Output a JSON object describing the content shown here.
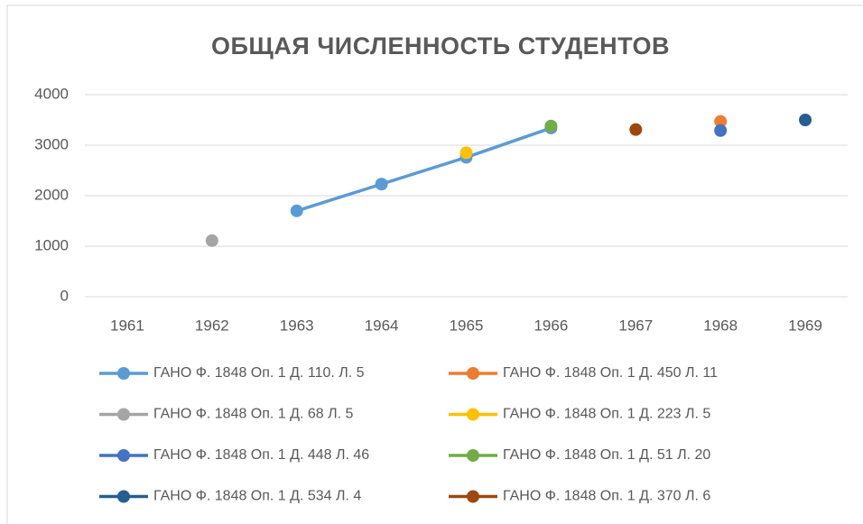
{
  "chart_data": {
    "type": "line",
    "title": "ОБЩАЯ ЧИСЛЕННОСТЬ СТУДЕНТОВ",
    "categories": [
      "1961",
      "1962",
      "1963",
      "1964",
      "1965",
      "1966",
      "1967",
      "1968",
      "1969"
    ],
    "ylim": [
      0,
      4000
    ],
    "yticks": [
      0,
      1000,
      2000,
      3000,
      4000
    ],
    "grid": true,
    "legend": "bottom",
    "series": [
      {
        "name": "ГАНО Ф. 1848 Оп. 1 Д. 110. Л. 5",
        "color": "#5b9bd5",
        "values": [
          null,
          null,
          1700,
          2230,
          2760,
          3340,
          null,
          null,
          null
        ]
      },
      {
        "name": "ГАНО Ф. 1848 Оп. 1 Д. 450 Л. 11",
        "color": "#ed7d31",
        "values": [
          null,
          null,
          null,
          null,
          null,
          null,
          null,
          3470,
          null
        ]
      },
      {
        "name": "ГАНО Ф. 1848 Оп. 1 Д. 68 Л. 5",
        "color": "#a5a5a5",
        "values": [
          null,
          1110,
          null,
          null,
          null,
          null,
          null,
          null,
          null
        ]
      },
      {
        "name": "ГАНО Ф. 1848 Оп. 1 Д. 223 Л. 5",
        "color": "#ffc000",
        "values": [
          null,
          null,
          null,
          null,
          2850,
          null,
          null,
          null,
          null
        ]
      },
      {
        "name": "ГАНО Ф. 1848 Оп. 1 Д. 448 Л. 46",
        "color": "#4472c4",
        "values": [
          null,
          null,
          null,
          null,
          null,
          null,
          null,
          3290,
          null
        ]
      },
      {
        "name": "ГАНО Ф. 1848 Оп. 1 Д. 51 Л. 20",
        "color": "#70ad47",
        "values": [
          null,
          null,
          null,
          null,
          null,
          3380,
          null,
          null,
          null
        ]
      },
      {
        "name": "ГАНО Ф. 1848 Оп. 1 Д. 534 Л. 4",
        "color": "#255e91",
        "values": [
          null,
          null,
          null,
          null,
          null,
          null,
          null,
          null,
          3500
        ]
      },
      {
        "name": "ГАНО Ф. 1848 Оп. 1 Д. 370 Л. 6",
        "color": "#9e480e",
        "values": [
          null,
          null,
          null,
          null,
          null,
          null,
          3310,
          null,
          null
        ]
      }
    ]
  }
}
